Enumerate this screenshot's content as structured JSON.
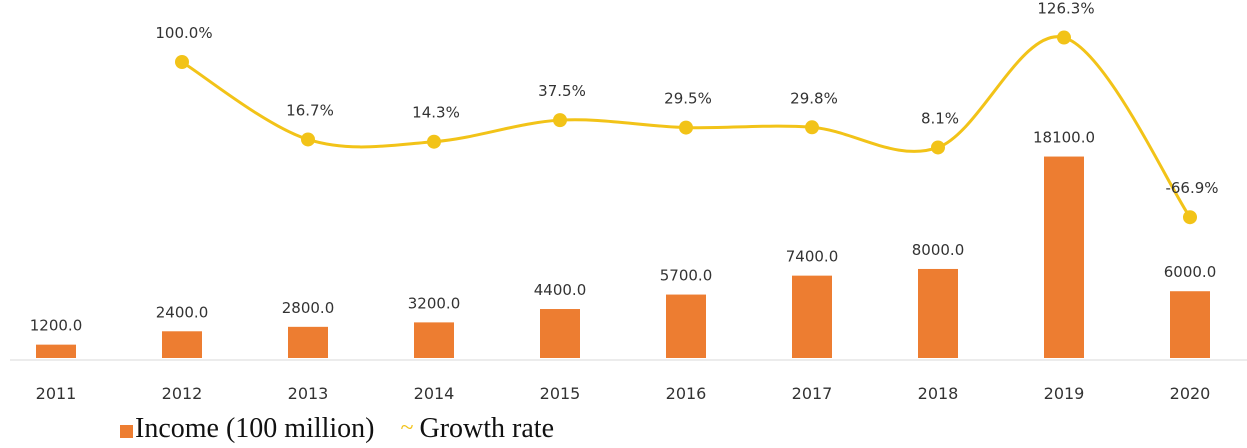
{
  "chart_data": {
    "type": "bar",
    "categories": [
      "2011",
      "2012",
      "2013",
      "2014",
      "2015",
      "2016",
      "2017",
      "2018",
      "2019",
      "2020"
    ],
    "series": [
      {
        "name": "Income (100 million)",
        "type": "bar",
        "values": [
          1200.0,
          2400.0,
          2800.0,
          3200.0,
          4400.0,
          5700.0,
          7400.0,
          8000.0,
          18100.0,
          6000.0
        ],
        "labels": [
          "1200.0",
          "2400.0",
          "2800.0",
          "3200.0",
          "4400.0",
          "5700.0",
          "7400.0",
          "8000.0",
          "18100.0",
          "6000.0"
        ],
        "color": "#ed7d31"
      },
      {
        "name": "Growth rate",
        "type": "line",
        "values": [
          null,
          100.0,
          16.7,
          14.3,
          37.5,
          29.5,
          29.8,
          8.1,
          126.3,
          -66.9
        ],
        "labels": [
          "",
          "100.0%",
          "16.7%",
          "14.3%",
          "37.5%",
          "29.5%",
          "29.8%",
          "8.1%",
          "126.3%",
          "-66.9%"
        ],
        "color": "#f2c318",
        "smooth": true
      }
    ],
    "title": "",
    "xlabel": "",
    "ylabel": "",
    "grid": false,
    "legend_position": "bottom-left"
  },
  "legend": {
    "items": [
      {
        "label": "Income (100 million)",
        "symbol": "■",
        "color": "#ed7d31"
      },
      {
        "label": "Growth rate",
        "symbol": "~",
        "color": "#f2c318"
      }
    ]
  }
}
